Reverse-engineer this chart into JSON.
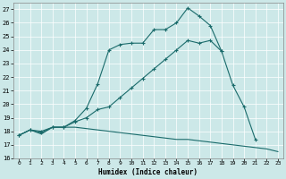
{
  "xlabel": "Humidex (Indice chaleur)",
  "bg_color": "#cce8e8",
  "line_color": "#1a6b6b",
  "grid_color": "#b0d8d8",
  "xlim": [
    -0.5,
    23.5
  ],
  "ylim": [
    16,
    27.5
  ],
  "xticks": [
    0,
    1,
    2,
    3,
    4,
    5,
    6,
    7,
    8,
    9,
    10,
    11,
    12,
    13,
    14,
    15,
    16,
    17,
    18,
    19,
    20,
    21,
    22,
    23
  ],
  "yticks": [
    16,
    17,
    18,
    19,
    20,
    21,
    22,
    23,
    24,
    25,
    26,
    27
  ],
  "line1_y": [
    17.7,
    18.1,
    18.0,
    18.3,
    18.3,
    18.8,
    19.7,
    21.5,
    24.0,
    24.4,
    24.5,
    24.5,
    25.5,
    25.5,
    26.0,
    27.1,
    26.5,
    25.8,
    23.9,
    null,
    null,
    null,
    null,
    null
  ],
  "line2_y": [
    17.7,
    18.1,
    17.9,
    18.3,
    18.3,
    18.7,
    19.0,
    19.6,
    19.8,
    20.5,
    21.2,
    21.9,
    22.6,
    23.3,
    24.0,
    24.7,
    24.5,
    24.7,
    23.9,
    21.4,
    19.8,
    17.4,
    null,
    null
  ],
  "line3_y": [
    17.7,
    18.1,
    17.8,
    18.3,
    18.3,
    18.3,
    18.2,
    18.1,
    18.0,
    17.9,
    17.8,
    17.7,
    17.6,
    17.5,
    17.4,
    17.4,
    17.3,
    17.2,
    17.1,
    17.0,
    16.9,
    16.8,
    16.7,
    16.5
  ]
}
